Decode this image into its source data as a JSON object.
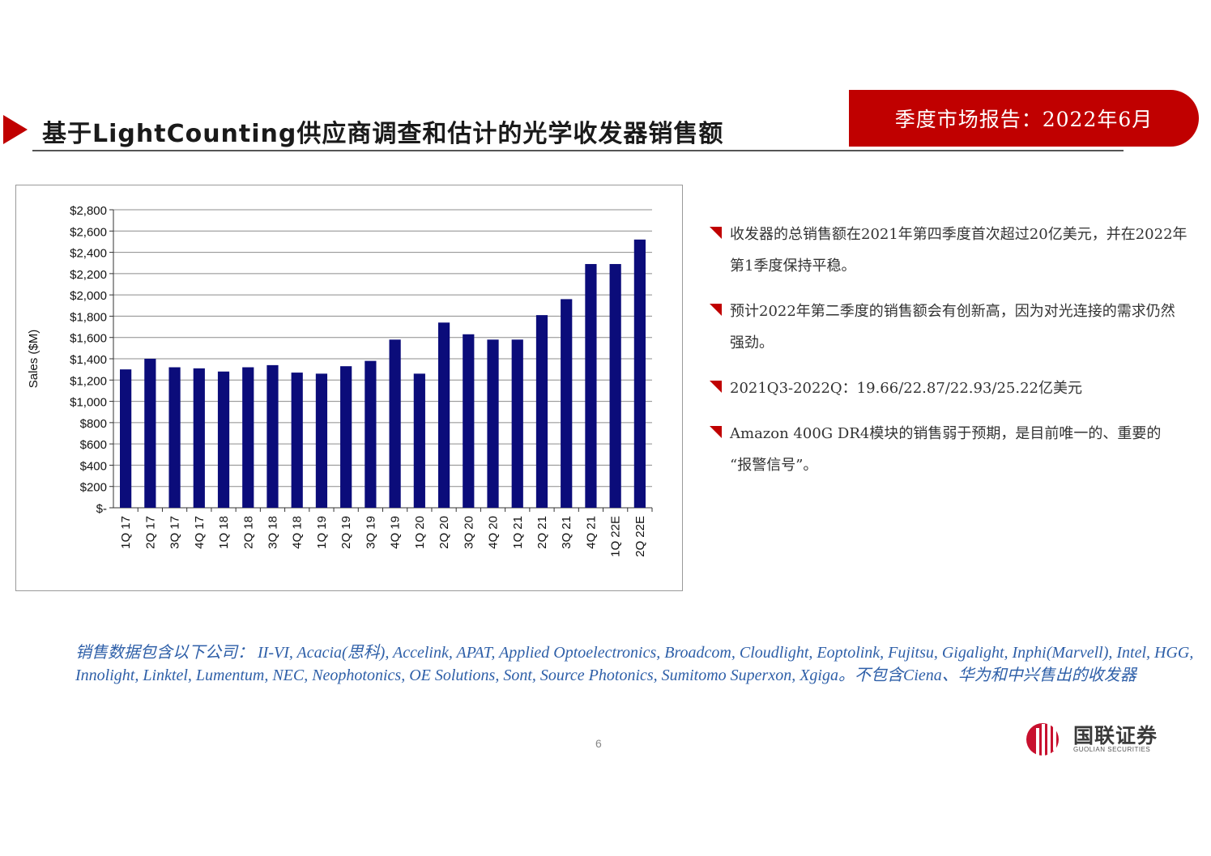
{
  "header": {
    "title": "基于LightCounting供应商调查和估计的光学收发器销售额",
    "banner": "季度市场报告：2022年6月"
  },
  "chart_data": {
    "type": "bar",
    "ylabel": "Sales ($M)",
    "xlabel": "",
    "ylim": [
      0,
      2800
    ],
    "ytick_values": [
      0,
      200,
      400,
      600,
      800,
      1000,
      1200,
      1400,
      1600,
      1800,
      2000,
      2200,
      2400,
      2600,
      2800
    ],
    "ytick_labels": [
      "$-",
      "$200",
      "$400",
      "$600",
      "$800",
      "$1,000",
      "$1,200",
      "$1,400",
      "$1,600",
      "$1,800",
      "$2,000",
      "$2,200",
      "$2,400",
      "$2,600",
      "$2,800"
    ],
    "grid": true,
    "bar_color": "#0b0c7a",
    "categories": [
      "1Q 17",
      "2Q 17",
      "3Q 17",
      "4Q 17",
      "1Q 18",
      "2Q 18",
      "3Q 18",
      "4Q 18",
      "1Q 19",
      "2Q 19",
      "3Q 19",
      "4Q 19",
      "1Q 20",
      "2Q 20",
      "3Q 20",
      "4Q 20",
      "1Q 21",
      "2Q 21",
      "3Q 21",
      "4Q 21",
      "1Q 22E",
      "2Q 22E"
    ],
    "values": [
      1300,
      1400,
      1320,
      1310,
      1280,
      1320,
      1340,
      1270,
      1260,
      1330,
      1380,
      1580,
      1260,
      1740,
      1630,
      1580,
      1580,
      1810,
      1960,
      2290,
      2290,
      2520
    ]
  },
  "bullets": [
    "收发器的总销售额在2021年第四季度首次超过20亿美元，并在2022年第1季度保持平稳。",
    "预计2022年第二季度的销售额会有创新高，因为对光连接的需求仍然强劲。",
    "2021Q3-2022Q：19.66/22.87/22.93/25.22亿美元",
    "Amazon 400G DR4模块的销售弱于预期，是目前唯一的、重要的 “报警信号”。"
  ],
  "footnote": "销售数据包含以下公司： II-VI, Acacia(思科), Accelink, APAT, Applied Optoelectronics, Broadcom, Cloudlight, Eoptolink, Fujitsu, Gigalight, Inphi(Marvell), Intel, HGG, Innolight, Linktel, Lumentum, NEC, Neophotonics, OE Solutions, Sont, Source Photonics, Sumitomo Superxon, Xgiga。不包含Ciena、华为和中兴售出的收发器",
  "page_number": "6",
  "logo": {
    "name": "国联证券",
    "sub": "GUOLIAN SECURITIES"
  },
  "colors": {
    "accent": "#c00000",
    "footnote": "#2e5fa8"
  }
}
